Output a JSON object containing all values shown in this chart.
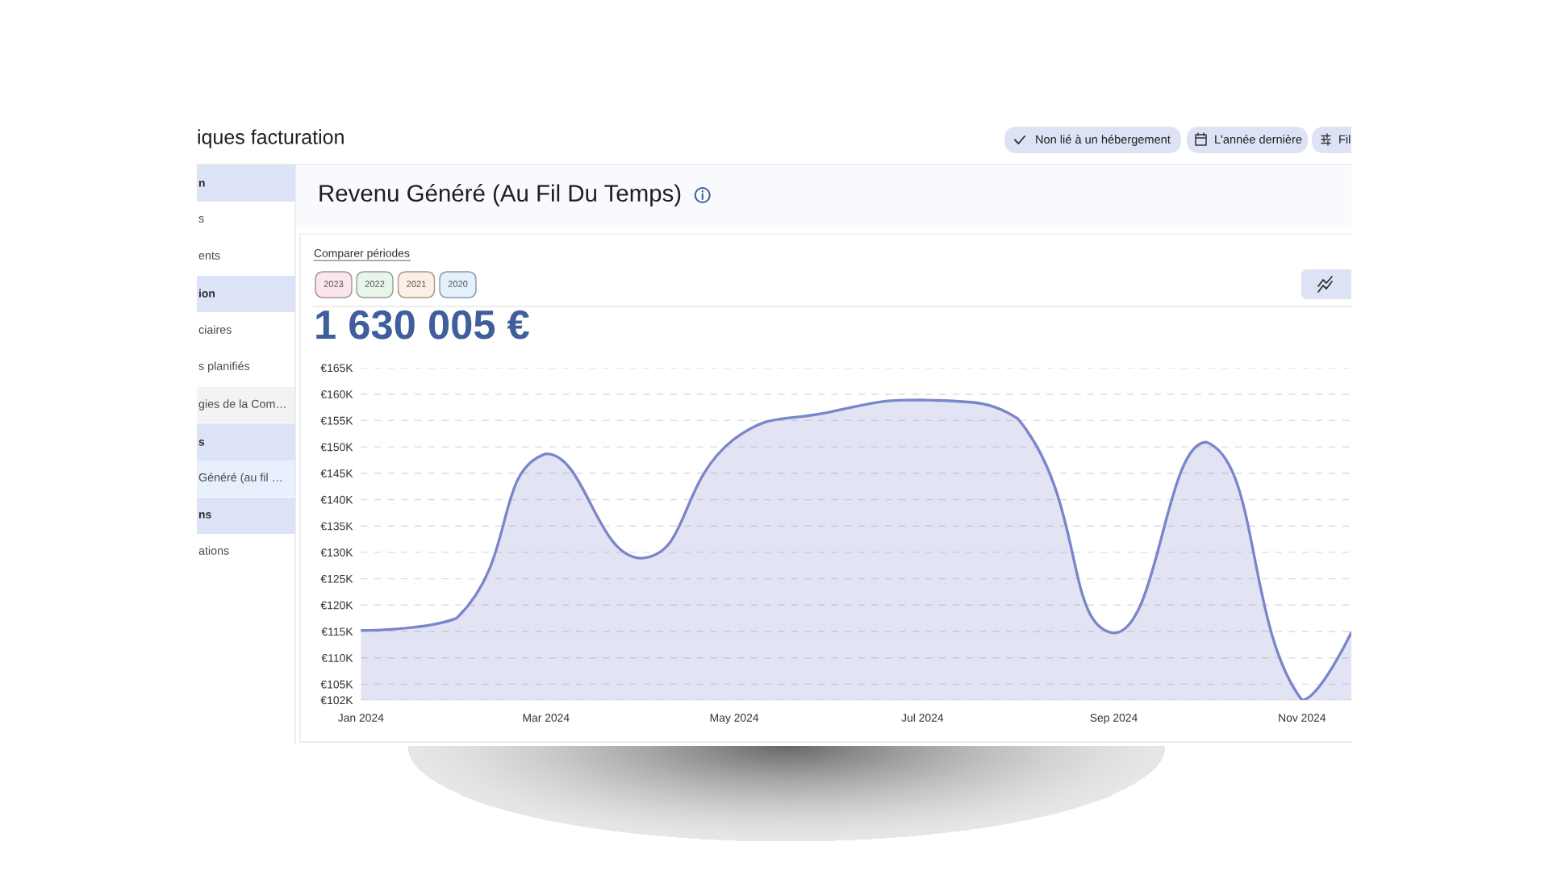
{
  "chart_data": {
    "type": "area",
    "title": "Revenu Généré (Au Fil Du Temps)",
    "subtitle": "1 630 005 €",
    "annotations": [
      "iques facturation",
      "Non lié à un hébergement",
      "L'année dernière",
      "Fil",
      "Comparer périodes",
      "2023",
      "2022",
      "2021",
      "2020",
      "n",
      "s",
      "ents",
      "ion",
      "ciaires",
      "s planifiés",
      "gies de la Com…",
      "s",
      "Généré (au fil …",
      "ns",
      "ations"
    ],
    "x": [
      "2024-01",
      "2024-02",
      "2024-03",
      "2024-04",
      "2024-05",
      "2024-06",
      "2024-07",
      "2024-08",
      "2024-09",
      "2024-10",
      "2024-11",
      "2024-11-17"
    ],
    "values": [
      115200,
      117500,
      148700,
      128900,
      151500,
      156600,
      158900,
      155300,
      114700,
      150900,
      102000,
      114800
    ],
    "color": "#7986cb",
    "line_style": "solid",
    "xlim": [
      "2024-01",
      "2024-11-17"
    ],
    "xticks": [
      {
        "value": "2024-01",
        "label": "Jan 2024"
      },
      {
        "value": "2024-03",
        "label": "Mar 2024"
      },
      {
        "value": "2024-05",
        "label": "May 2024"
      },
      {
        "value": "2024-07",
        "label": "Jul 2024"
      },
      {
        "value": "2024-09",
        "label": "Sep 2024"
      },
      {
        "value": "2024-11",
        "label": "Nov 2024"
      }
    ],
    "ylim": [
      102000,
      165000
    ],
    "yticks": [
      {
        "value": 102000,
        "label": "€102K"
      },
      {
        "value": 105000,
        "label": "€105K"
      },
      {
        "value": 110000,
        "label": "€110K"
      },
      {
        "value": 115000,
        "label": "€115K"
      },
      {
        "value": 120000,
        "label": "€120K"
      },
      {
        "value": 125000,
        "label": "€125K"
      },
      {
        "value": 130000,
        "label": "€130K"
      },
      {
        "value": 135000,
        "label": "€135K"
      },
      {
        "value": 140000,
        "label": "€140K"
      },
      {
        "value": 145000,
        "label": "€145K"
      },
      {
        "value": 150000,
        "label": "€150K"
      },
      {
        "value": 155000,
        "label": "€155K"
      },
      {
        "value": 160000,
        "label": "€160K"
      },
      {
        "value": 165000,
        "label": "€165K"
      }
    ],
    "grid": "y"
  }
}
